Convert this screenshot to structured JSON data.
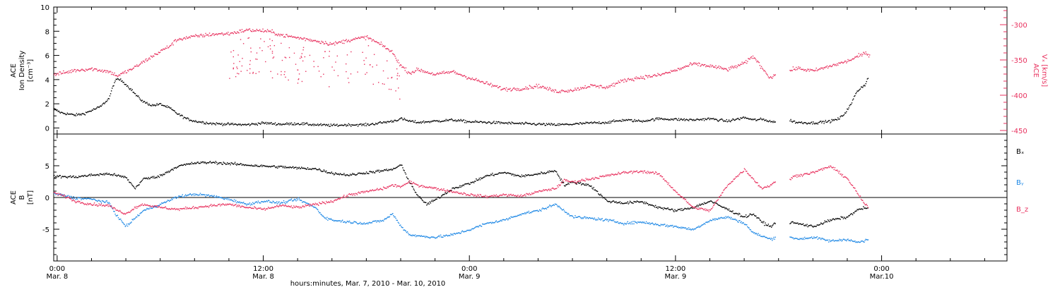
{
  "colors": {
    "ion_density": "#000000",
    "vx": "#e8325f",
    "bx": "#000000",
    "by": "#1e88e5",
    "bz": "#e8325f",
    "axis": "#000000"
  },
  "xaxis": {
    "title": "hours:minutes, Mar.  7, 2010 - Mar. 10, 2010",
    "range_hours": [
      -0.2,
      55.3
    ],
    "ticks": [
      {
        "hours": 0,
        "time": "0:00",
        "date": "Mar. 8"
      },
      {
        "hours": 12,
        "time": "12:00",
        "date": "Mar. 8"
      },
      {
        "hours": 24,
        "time": "0:00",
        "date": "Mar. 9"
      },
      {
        "hours": 36,
        "time": "12:00",
        "date": "Mar. 9"
      },
      {
        "hours": 48,
        "time": "0:00",
        "date": "Mar.10"
      }
    ]
  },
  "chart_data": [
    {
      "type": "scatter",
      "panel": "top",
      "ylabel_left": [
        "ACE",
        "Ion Density",
        "[cm⁻³]"
      ],
      "ylabel_right": [
        "ACE",
        "Vₓ [km/s]"
      ],
      "ylim_left": [
        -0.5,
        10
      ],
      "yticks_left": [
        0,
        2,
        4,
        6,
        8,
        10
      ],
      "ylim_right": [
        -455,
        -275
      ],
      "yticks_right": [
        -450,
        -400,
        -350,
        -300
      ],
      "series": [
        {
          "key": "density",
          "axis": "left",
          "x": [
            -0.2,
            0.2,
            0.6,
            1.0,
            1.5,
            2.0,
            2.5,
            3.0,
            3.3,
            3.5,
            3.8,
            4.0,
            4.3,
            4.6,
            5.0,
            5.5,
            6.0,
            6.5,
            7.0,
            7.5,
            8.0,
            8.5,
            9.0,
            10.0,
            11.0,
            12.0,
            13.0,
            14.0,
            15.0,
            16.0,
            17.0,
            18.0,
            19.0,
            19.5,
            20.0,
            20.5,
            21.0,
            22.0,
            23.0,
            24.0,
            25.0,
            26.0,
            27.0,
            28.0,
            29.0,
            30.0,
            31.0,
            32.0,
            33.0,
            34.0,
            35.0,
            36.0,
            37.0,
            38.0,
            39.0,
            40.0,
            40.5,
            41.0,
            41.5,
            41.8,
            42.0,
            42.6,
            43.0,
            44.0,
            45.0,
            45.5,
            45.8,
            46.2,
            46.5,
            46.8,
            47.0,
            47.2
          ],
          "y": [
            1.6,
            1.3,
            1.2,
            1.1,
            1.2,
            1.5,
            1.8,
            2.5,
            3.8,
            4.1,
            3.9,
            3.6,
            3.2,
            2.7,
            2.2,
            1.9,
            2.0,
            1.7,
            1.2,
            0.8,
            0.6,
            0.5,
            0.4,
            0.35,
            0.3,
            0.45,
            0.35,
            0.4,
            0.3,
            0.25,
            0.3,
            0.3,
            0.5,
            0.6,
            0.8,
            0.6,
            0.5,
            0.6,
            0.7,
            0.55,
            0.5,
            0.45,
            0.4,
            0.35,
            0.3,
            0.35,
            0.45,
            0.5,
            0.7,
            0.6,
            0.8,
            0.75,
            0.7,
            0.8,
            0.6,
            0.9,
            0.7,
            0.75,
            0.6,
            0.5,
            null,
            0.7,
            0.5,
            0.45,
            0.6,
            0.8,
            1.2,
            2.0,
            3.0,
            3.4,
            3.6,
            4.2
          ]
        },
        {
          "key": "vx",
          "axis": "right",
          "x": [
            -0.2,
            0.5,
            1.0,
            2.0,
            3.0,
            3.5,
            4.0,
            4.5,
            5.0,
            6.0,
            6.5,
            7.0,
            8.0,
            9.0,
            10.0,
            11.0,
            12.0,
            12.5,
            13.0,
            14.0,
            15.0,
            16.0,
            17.0,
            18.0,
            19.0,
            19.5,
            20.0,
            20.5,
            21.0,
            22.0,
            23.0,
            24.0,
            25.0,
            26.0,
            27.0,
            28.0,
            29.0,
            30.0,
            31.0,
            32.0,
            33.0,
            34.0,
            35.0,
            36.0,
            37.0,
            38.0,
            39.0,
            40.0,
            40.5,
            41.0,
            41.5,
            41.8,
            42.0,
            42.6,
            43.0,
            44.0,
            45.0,
            46.0,
            47.0,
            47.3
          ],
          "y": [
            -370,
            -367,
            -364,
            -362,
            -366,
            -372,
            -366,
            -360,
            -352,
            -337,
            -330,
            -320,
            -316,
            -313,
            -312,
            -307,
            -308,
            -310,
            -314,
            -318,
            -322,
            -327,
            -321,
            -317,
            -330,
            -339,
            -358,
            -368,
            -363,
            -370,
            -366,
            -375,
            -383,
            -391,
            -390,
            -386,
            -394,
            -392,
            -386,
            -388,
            -378,
            -374,
            -371,
            -364,
            -355,
            -358,
            -363,
            -354,
            -344,
            -360,
            -375,
            -370,
            null,
            -365,
            -361,
            -365,
            -358,
            -351,
            -340,
            -342
          ]
        }
      ]
    },
    {
      "type": "scatter",
      "panel": "bottom",
      "ylabel_left": [
        "ACE",
        "B",
        "[nT]"
      ],
      "ylim": [
        -10,
        10
      ],
      "yticks": [
        -5,
        0,
        5
      ],
      "zero_line": true,
      "series": [
        {
          "key": "bx",
          "name": "Bₓ",
          "x": [
            -0.2,
            1.0,
            2.0,
            3.0,
            4.0,
            4.5,
            5.0,
            5.5,
            6.0,
            7.0,
            8.0,
            9.0,
            10.0,
            11.0,
            12.0,
            13.0,
            14.0,
            15.0,
            16.0,
            17.0,
            18.0,
            19.0,
            19.5,
            20.0,
            20.5,
            21.0,
            21.5,
            22.0,
            23.0,
            24.0,
            25.0,
            26.0,
            27.0,
            28.0,
            29.0,
            29.5,
            30.0,
            31.0,
            32.0,
            33.0,
            34.0,
            35.0,
            36.0,
            37.0,
            38.0,
            39.0,
            40.0,
            40.5,
            41.0,
            41.5,
            41.8,
            42.0,
            42.6,
            43.0,
            44.0,
            45.0,
            46.0,
            46.5,
            47.0,
            47.2
          ],
          "y": [
            3.4,
            3.3,
            3.6,
            3.8,
            3.2,
            1.5,
            3.0,
            3.2,
            3.5,
            5.0,
            5.5,
            5.6,
            5.4,
            5.2,
            5.0,
            4.9,
            4.7,
            4.6,
            3.9,
            3.6,
            4.0,
            4.3,
            4.5,
            5.2,
            2.5,
            0.2,
            -1.0,
            -0.3,
            1.5,
            2.3,
            3.5,
            4.0,
            3.4,
            3.8,
            4.3,
            2.0,
            2.5,
            2.0,
            -0.5,
            -0.8,
            -0.6,
            -1.5,
            -2.0,
            -1.5,
            -0.5,
            -1.8,
            -3.0,
            -2.5,
            -3.8,
            -4.5,
            -4.0,
            null,
            -3.8,
            -4.0,
            -4.5,
            -3.5,
            -3.0,
            -2.0,
            -1.5,
            -1.8
          ]
        },
        {
          "key": "by",
          "name": "Bᵧ",
          "x": [
            -0.2,
            0.5,
            1.0,
            2.0,
            3.0,
            3.5,
            4.0,
            4.5,
            5.0,
            6.0,
            7.0,
            8.0,
            9.0,
            10.0,
            11.0,
            12.0,
            13.0,
            14.0,
            15.0,
            15.5,
            16.0,
            17.0,
            18.0,
            19.0,
            19.5,
            20.0,
            20.5,
            21.0,
            22.0,
            23.0,
            24.0,
            25.0,
            26.0,
            27.0,
            28.0,
            29.0,
            30.0,
            31.0,
            32.0,
            33.0,
            34.0,
            35.0,
            36.0,
            37.0,
            38.0,
            39.0,
            40.0,
            40.5,
            41.0,
            41.5,
            41.8,
            42.0,
            42.6,
            43.0,
            44.0,
            45.0,
            46.0,
            46.5,
            47.0,
            47.2
          ],
          "y": [
            0.7,
            0.3,
            0.0,
            -0.2,
            -0.8,
            -3.0,
            -4.5,
            -3.2,
            -2.0,
            -1.0,
            0.2,
            0.6,
            0.3,
            -0.2,
            -1.0,
            -0.5,
            -0.8,
            -0.2,
            -1.5,
            -3.0,
            -3.5,
            -3.8,
            -4.0,
            -3.5,
            -2.5,
            -4.5,
            -5.8,
            -6.0,
            -6.2,
            -5.8,
            -5.0,
            -4.0,
            -3.5,
            -2.5,
            -2.0,
            -1.0,
            -3.0,
            -3.2,
            -3.5,
            -4.0,
            -3.8,
            -4.2,
            -4.5,
            -5.0,
            -3.5,
            -3.0,
            -4.0,
            -5.5,
            -6.0,
            -6.5,
            -6.2,
            null,
            -6.0,
            -6.5,
            -6.2,
            -6.8,
            -6.5,
            -7.0,
            -6.8,
            -6.5
          ]
        },
        {
          "key": "bz",
          "name": "B_z",
          "x": [
            -0.2,
            0.5,
            1.0,
            2.0,
            3.0,
            3.5,
            4.0,
            4.5,
            5.0,
            6.0,
            7.0,
            8.0,
            9.0,
            10.0,
            11.0,
            12.0,
            13.0,
            14.0,
            15.0,
            16.0,
            17.0,
            18.0,
            19.0,
            19.5,
            20.0,
            20.5,
            21.0,
            22.0,
            23.0,
            24.0,
            25.0,
            26.0,
            27.0,
            28.0,
            29.0,
            29.5,
            30.0,
            31.0,
            32.0,
            33.0,
            34.0,
            35.0,
            36.0,
            37.0,
            38.0,
            39.0,
            40.0,
            40.5,
            41.0,
            41.5,
            41.8,
            42.0,
            42.6,
            43.0,
            44.0,
            45.0,
            46.0,
            46.5,
            47.0,
            47.2
          ],
          "y": [
            0.8,
            0.2,
            -0.5,
            -1.0,
            -1.2,
            -2.0,
            -2.5,
            -1.5,
            -1.0,
            -1.5,
            -1.8,
            -1.5,
            -1.2,
            -1.0,
            -1.5,
            -1.8,
            -1.2,
            -1.5,
            -1.0,
            -0.5,
            0.5,
            1.0,
            1.5,
            2.0,
            1.8,
            2.5,
            2.0,
            1.5,
            1.0,
            0.5,
            0.2,
            0.5,
            0.3,
            1.0,
            1.5,
            2.8,
            2.5,
            3.0,
            3.5,
            4.0,
            4.2,
            3.8,
            1.0,
            -1.5,
            -2.0,
            2.0,
            4.5,
            3.0,
            1.5,
            2.0,
            2.5,
            null,
            3.0,
            3.5,
            4.0,
            5.0,
            3.0,
            1.0,
            -1.0,
            -1.5
          ]
        }
      ]
    }
  ]
}
